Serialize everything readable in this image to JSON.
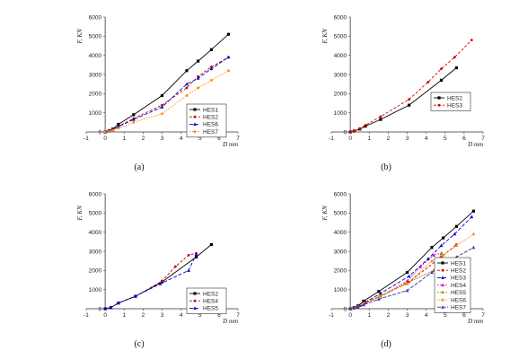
{
  "chart_data": [
    {
      "type": "line",
      "caption": "(a)",
      "xlabel": "D mm",
      "ylabel": "F, KN",
      "xlim": [
        -1,
        7
      ],
      "ylim": [
        0,
        6000
      ],
      "xticks": [
        "-1",
        "0",
        "1",
        "2",
        "3",
        "4",
        "5",
        "6",
        "7"
      ],
      "yticks": [
        "0",
        "1000",
        "2000",
        "3000",
        "4000",
        "5000",
        "6000"
      ],
      "legend_position": "right",
      "series": [
        {
          "name": "HES1",
          "color": "#000000",
          "dash": "",
          "marker": "square",
          "x": [
            0,
            0.2,
            0.4,
            0.7,
            1.5,
            3.0,
            4.3,
            4.9,
            5.6,
            6.5
          ],
          "y": [
            0,
            60,
            150,
            400,
            900,
            1900,
            3200,
            3700,
            4300,
            5100
          ]
        },
        {
          "name": "HES2",
          "color": "#cc0000",
          "dash": "3,2",
          "marker": "dot",
          "x": [
            0,
            0.2,
            0.4,
            0.7,
            1.5,
            3.0,
            4.3,
            4.9,
            5.6,
            6.5
          ],
          "y": [
            0,
            50,
            120,
            300,
            700,
            1400,
            2300,
            2900,
            3400,
            3900
          ]
        },
        {
          "name": "HES6",
          "color": "#0000cc",
          "dash": "4,2",
          "marker": "triangle",
          "x": [
            0,
            0.2,
            0.4,
            0.7,
            1.5,
            3.0,
            4.3,
            4.9,
            5.6,
            6.5
          ],
          "y": [
            0,
            40,
            110,
            280,
            650,
            1300,
            2500,
            2800,
            3300,
            3900
          ]
        },
        {
          "name": "HES7",
          "color": "#ff8800",
          "dash": "1.5,1.5",
          "marker": "dot",
          "x": [
            0,
            0.2,
            0.4,
            0.7,
            1.5,
            3.0,
            4.3,
            4.9,
            5.6,
            6.5
          ],
          "y": [
            0,
            30,
            90,
            200,
            500,
            950,
            1900,
            2300,
            2700,
            3200
          ]
        }
      ]
    },
    {
      "type": "line",
      "caption": "(b)",
      "xlabel": "D mm",
      "ylabel": "F, KN",
      "xlim": [
        -1,
        7
      ],
      "ylim": [
        0,
        6000
      ],
      "xticks": [
        "-1",
        "0",
        "1",
        "2",
        "3",
        "4",
        "5",
        "6",
        "7"
      ],
      "yticks": [
        "0",
        "1000",
        "2000",
        "3000",
        "4000",
        "5000",
        "6000"
      ],
      "legend_position": "lower-right",
      "series": [
        {
          "name": "HES2",
          "color": "#000000",
          "dash": "",
          "marker": "square",
          "x": [
            0,
            0.2,
            0.5,
            0.8,
            1.6,
            3.1,
            4.8,
            5.6
          ],
          "y": [
            0,
            50,
            150,
            300,
            650,
            1400,
            2700,
            3350
          ]
        },
        {
          "name": "HES3",
          "color": "#cc0000",
          "dash": "3,2",
          "marker": "dot",
          "x": [
            0,
            0.2,
            0.5,
            0.8,
            1.6,
            3.1,
            4.1,
            4.8,
            5.5,
            6.4
          ],
          "y": [
            0,
            60,
            170,
            350,
            800,
            1700,
            2600,
            3300,
            3900,
            4800
          ]
        }
      ]
    },
    {
      "type": "line",
      "caption": "(c)",
      "xlabel": "D mm",
      "ylabel": "F, KN",
      "xlim": [
        -1,
        7
      ],
      "ylim": [
        0,
        6000
      ],
      "xticks": [
        "-1",
        "0",
        "1",
        "2",
        "3",
        "4",
        "5",
        "6",
        "7"
      ],
      "yticks": [
        "0",
        "1000",
        "2000",
        "3000",
        "4000",
        "5000",
        "6000"
      ],
      "legend_position": "lower-right",
      "series": [
        {
          "name": "HES2",
          "color": "#000000",
          "dash": "",
          "marker": "square",
          "x": [
            0,
            0.3,
            0.7,
            1.6,
            3.0,
            4.8,
            5.6
          ],
          "y": [
            0,
            60,
            300,
            650,
            1400,
            2700,
            3350
          ]
        },
        {
          "name": "HES4",
          "color": "#cc0000",
          "dash": "3,2",
          "marker": "dot",
          "x": [
            0,
            0.3,
            0.7,
            1.6,
            3.0,
            3.7,
            4.4,
            4.8
          ],
          "y": [
            0,
            60,
            300,
            650,
            1450,
            2200,
            2800,
            2900
          ]
        },
        {
          "name": "HES5",
          "color": "#0000cc",
          "dash": "4,2",
          "marker": "triangle",
          "x": [
            0,
            0.3,
            0.7,
            1.6,
            2.9,
            4.4,
            4.8
          ],
          "y": [
            0,
            60,
            300,
            650,
            1300,
            2000,
            2850
          ]
        }
      ]
    },
    {
      "type": "line",
      "caption": "(d)",
      "xlabel": "D mm",
      "ylabel": "F, KN",
      "xlim": [
        -1,
        7
      ],
      "ylim": [
        0,
        6000
      ],
      "xticks": [
        "-1",
        "0",
        "1",
        "2",
        "3",
        "4",
        "5",
        "6",
        "7"
      ],
      "yticks": [
        "0",
        "1000",
        "2000",
        "3000",
        "4000",
        "5000",
        "6000"
      ],
      "legend_position": "right",
      "series": [
        {
          "name": "HES1",
          "color": "#000000",
          "dash": "",
          "marker": "square",
          "x": [
            0,
            0.2,
            0.4,
            0.7,
            1.5,
            3.0,
            4.3,
            4.9,
            5.6,
            6.5
          ],
          "y": [
            0,
            60,
            150,
            400,
            900,
            1900,
            3200,
            3700,
            4300,
            5100
          ]
        },
        {
          "name": "HES2",
          "color": "#cc0000",
          "dash": "3,2",
          "marker": "dot",
          "x": [
            0,
            0.2,
            0.5,
            0.8,
            1.6,
            3.1,
            4.8,
            5.6
          ],
          "y": [
            0,
            50,
            150,
            300,
            650,
            1400,
            2700,
            3350
          ]
        },
        {
          "name": "HES3",
          "color": "#0000cc",
          "dash": "4,2",
          "marker": "triangle",
          "x": [
            0,
            0.2,
            0.5,
            0.8,
            1.6,
            3.1,
            4.1,
            4.8,
            5.5,
            6.4
          ],
          "y": [
            0,
            60,
            170,
            350,
            800,
            1700,
            2600,
            3300,
            3900,
            4800
          ]
        },
        {
          "name": "HES4",
          "color": "#cc00cc",
          "dash": "1.5,1.5",
          "marker": "triangle",
          "x": [
            0,
            0.3,
            0.7,
            1.6,
            3.0,
            3.7,
            4.4,
            4.8
          ],
          "y": [
            0,
            60,
            300,
            650,
            1450,
            2200,
            2800,
            2900
          ]
        },
        {
          "name": "HES5",
          "color": "#999900",
          "dash": "2,1",
          "marker": "dot",
          "x": [
            0,
            0.3,
            0.7,
            1.6,
            2.9,
            4.4,
            4.8
          ],
          "y": [
            0,
            60,
            300,
            650,
            1300,
            2000,
            2850
          ]
        },
        {
          "name": "HES6",
          "color": "#ff8800",
          "dash": "1,1",
          "marker": "triangle",
          "x": [
            0,
            0.2,
            0.4,
            0.7,
            1.5,
            3.0,
            4.3,
            4.9,
            5.6,
            6.5
          ],
          "y": [
            0,
            40,
            110,
            280,
            650,
            1300,
            2500,
            2800,
            3300,
            3900
          ]
        },
        {
          "name": "HES7",
          "color": "#3333aa",
          "dash": "4,1.5",
          "marker": "triangle",
          "x": [
            0,
            0.2,
            0.4,
            0.7,
            1.5,
            3.0,
            4.3,
            4.9,
            5.6,
            6.5
          ],
          "y": [
            0,
            30,
            90,
            200,
            500,
            950,
            1900,
            2300,
            2700,
            3200
          ]
        }
      ]
    }
  ]
}
